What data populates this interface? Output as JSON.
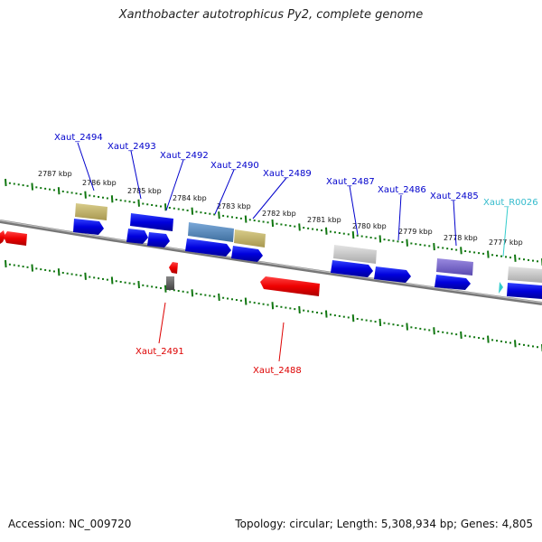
{
  "title": "Xanthobacter autotrophicus Py2, complete genome",
  "footer": {
    "accession": "Accession: NC_009720",
    "summary": "Topology: circular; Length: 5,308,934 bp; Genes: 4,805"
  },
  "colors": {
    "forward_gene": "#0000ee",
    "reverse_gene": "#ee0000",
    "rna_gene": "#33cccc",
    "backbone": "#888888",
    "tick": "#117711"
  },
  "scale_labels": [
    "2787 kbp",
    "2786 kbp",
    "2785 kbp",
    "2784 kbp",
    "2783 kbp",
    "2782 kbp",
    "2781 kbp",
    "2780 kbp",
    "2779 kbp",
    "2778 kbp",
    "2777 kbp"
  ],
  "gene_labels": {
    "forward": [
      "Xaut_2494",
      "Xaut_2493",
      "Xaut_2492",
      "Xaut_2490",
      "Xaut_2489",
      "Xaut_2487",
      "Xaut_2486",
      "Xaut_2485"
    ],
    "rna": [
      "Xaut_R0026"
    ],
    "reverse": [
      "Xaut_2491",
      "Xaut_2488"
    ]
  }
}
